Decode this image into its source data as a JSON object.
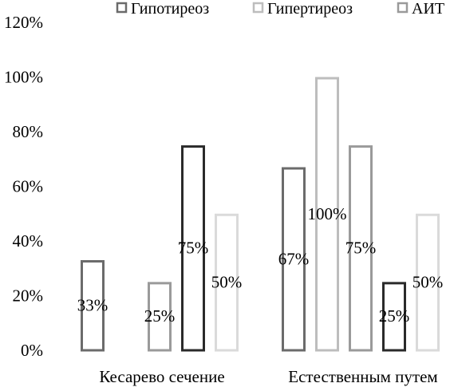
{
  "chart_data": {
    "type": "bar",
    "categories": [
      "Кесарево сечение",
      "Естественным путем"
    ],
    "series": [
      {
        "name": "Гипотиреоз",
        "values": [
          33,
          67
        ],
        "labels": [
          "33%",
          "67%"
        ],
        "color": "#6b6b6b"
      },
      {
        "name": "Гипертиреоз",
        "values": [
          0,
          100
        ],
        "labels": [
          "",
          "100%"
        ],
        "color": "#bdbdbd"
      },
      {
        "name": "АИТ",
        "values": [
          25,
          75
        ],
        "labels": [
          "25%",
          "75%"
        ],
        "color": "#9a9a9a"
      },
      {
        "name": "",
        "values": [
          75,
          25
        ],
        "labels": [
          "75%",
          "25%"
        ],
        "color": "#2a2a2a"
      },
      {
        "name": "",
        "values": [
          50,
          50
        ],
        "labels": [
          "50%",
          "50%"
        ],
        "color": "#dadada"
      }
    ],
    "y_ticks": [
      "0%",
      "20%",
      "40%",
      "60%",
      "80%",
      "100%",
      "120%"
    ],
    "ylim": [
      0,
      120
    ],
    "grid": false,
    "legend_position": "top"
  }
}
